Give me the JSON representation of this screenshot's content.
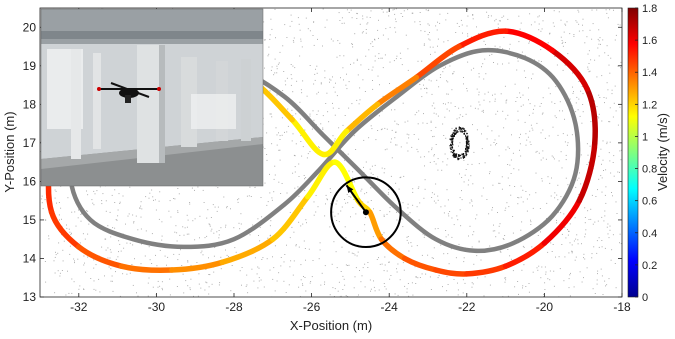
{
  "chart_data": {
    "type": "line",
    "title": "",
    "xlabel": "X-Position (m)",
    "ylabel": "Y-Position (m)",
    "xlim": [
      -33,
      -18
    ],
    "ylim": [
      13,
      20.5
    ],
    "x_ticks": [
      -32,
      -30,
      -28,
      -26,
      -24,
      -22,
      -20,
      -18
    ],
    "y_ticks": [
      13,
      14,
      15,
      16,
      17,
      18,
      19,
      20
    ],
    "x_tick_labels": [
      "-32",
      "-30",
      "-28",
      "-26",
      "-24",
      "-22",
      "-20",
      "-18"
    ],
    "y_tick_labels": [
      "13",
      "14",
      "15",
      "16",
      "17",
      "18",
      "19",
      "20"
    ],
    "colorbar": {
      "label": "Velocity (m/s)",
      "range": [
        0,
        1.8
      ],
      "ticks": [
        0,
        0.2,
        0.4,
        0.6,
        0.8,
        1,
        1.2,
        1.4,
        1.6,
        1.8
      ],
      "tick_labels": [
        "0",
        "0.2",
        "0.4",
        "0.6",
        "0.8",
        "1",
        "1.2",
        "1.4",
        "1.6",
        "1.8"
      ],
      "colormap": "jet"
    },
    "series": [
      {
        "style": "reference",
        "color": "#808080",
        "x": [
          -29.3,
          -31.0,
          -32.0,
          -32.2,
          -31.7,
          -30.6,
          -29.3,
          -28.0,
          -26.7,
          -25.8,
          -24.9,
          -23.8,
          -22.7,
          -21.6,
          -20.5,
          -19.7,
          -19.2,
          -19.2,
          -19.8,
          -20.8,
          -21.8,
          -22.8,
          -23.8,
          -24.8,
          -25.7,
          -26.7,
          -27.9,
          -29.3
        ],
        "y": [
          19.1,
          18.6,
          17.3,
          16.0,
          15.0,
          14.5,
          14.3,
          14.5,
          15.4,
          16.3,
          17.3,
          18.2,
          19.0,
          19.4,
          19.2,
          18.6,
          17.5,
          16.2,
          15.1,
          14.4,
          14.2,
          14.5,
          15.3,
          16.3,
          17.2,
          18.2,
          18.9,
          19.1
        ]
      },
      {
        "style": "actual",
        "x": [
          -31.0,
          -32.1,
          -32.7,
          -32.7,
          -32.0,
          -30.9,
          -29.6,
          -28.3,
          -27.0,
          -26.1,
          -25.4,
          -24.8,
          -24.5,
          -24.2,
          -23.6,
          -22.8,
          -22.0,
          -21.0,
          -20.0,
          -19.1,
          -18.7,
          -18.9,
          -19.8,
          -21.0,
          -22.2,
          -23.3,
          -24.3,
          -25.1,
          -25.7,
          -26.5,
          -27.5,
          -28.7,
          -30.0,
          -31.0
        ],
        "y": [
          19.3,
          18.0,
          16.6,
          15.2,
          14.3,
          13.8,
          13.7,
          13.9,
          14.5,
          15.6,
          16.5,
          15.5,
          15.2,
          14.5,
          14.0,
          13.7,
          13.6,
          13.8,
          14.4,
          15.5,
          17.0,
          18.4,
          19.4,
          19.9,
          19.5,
          18.7,
          18.0,
          17.3,
          16.7,
          17.6,
          18.6,
          19.3,
          19.4,
          19.3
        ],
        "velocity": [
          1.35,
          1.45,
          1.5,
          1.5,
          1.45,
          1.4,
          1.35,
          1.3,
          1.25,
          1.2,
          1.1,
          1.15,
          1.25,
          1.35,
          1.4,
          1.45,
          1.45,
          1.5,
          1.55,
          1.65,
          1.7,
          1.7,
          1.6,
          1.55,
          1.5,
          1.4,
          1.3,
          1.2,
          1.1,
          1.2,
          1.25,
          1.3,
          1.3,
          1.35
        ]
      }
    ],
    "annotations": [
      {
        "type": "circle",
        "center": [
          -24.6,
          15.2
        ],
        "radius": 0.9
      },
      {
        "type": "arrow",
        "from": [
          -24.6,
          15.2
        ],
        "to": [
          -25.1,
          15.9
        ]
      }
    ],
    "inset_photo": "photo-of-hexacopter-drone-indoors"
  }
}
